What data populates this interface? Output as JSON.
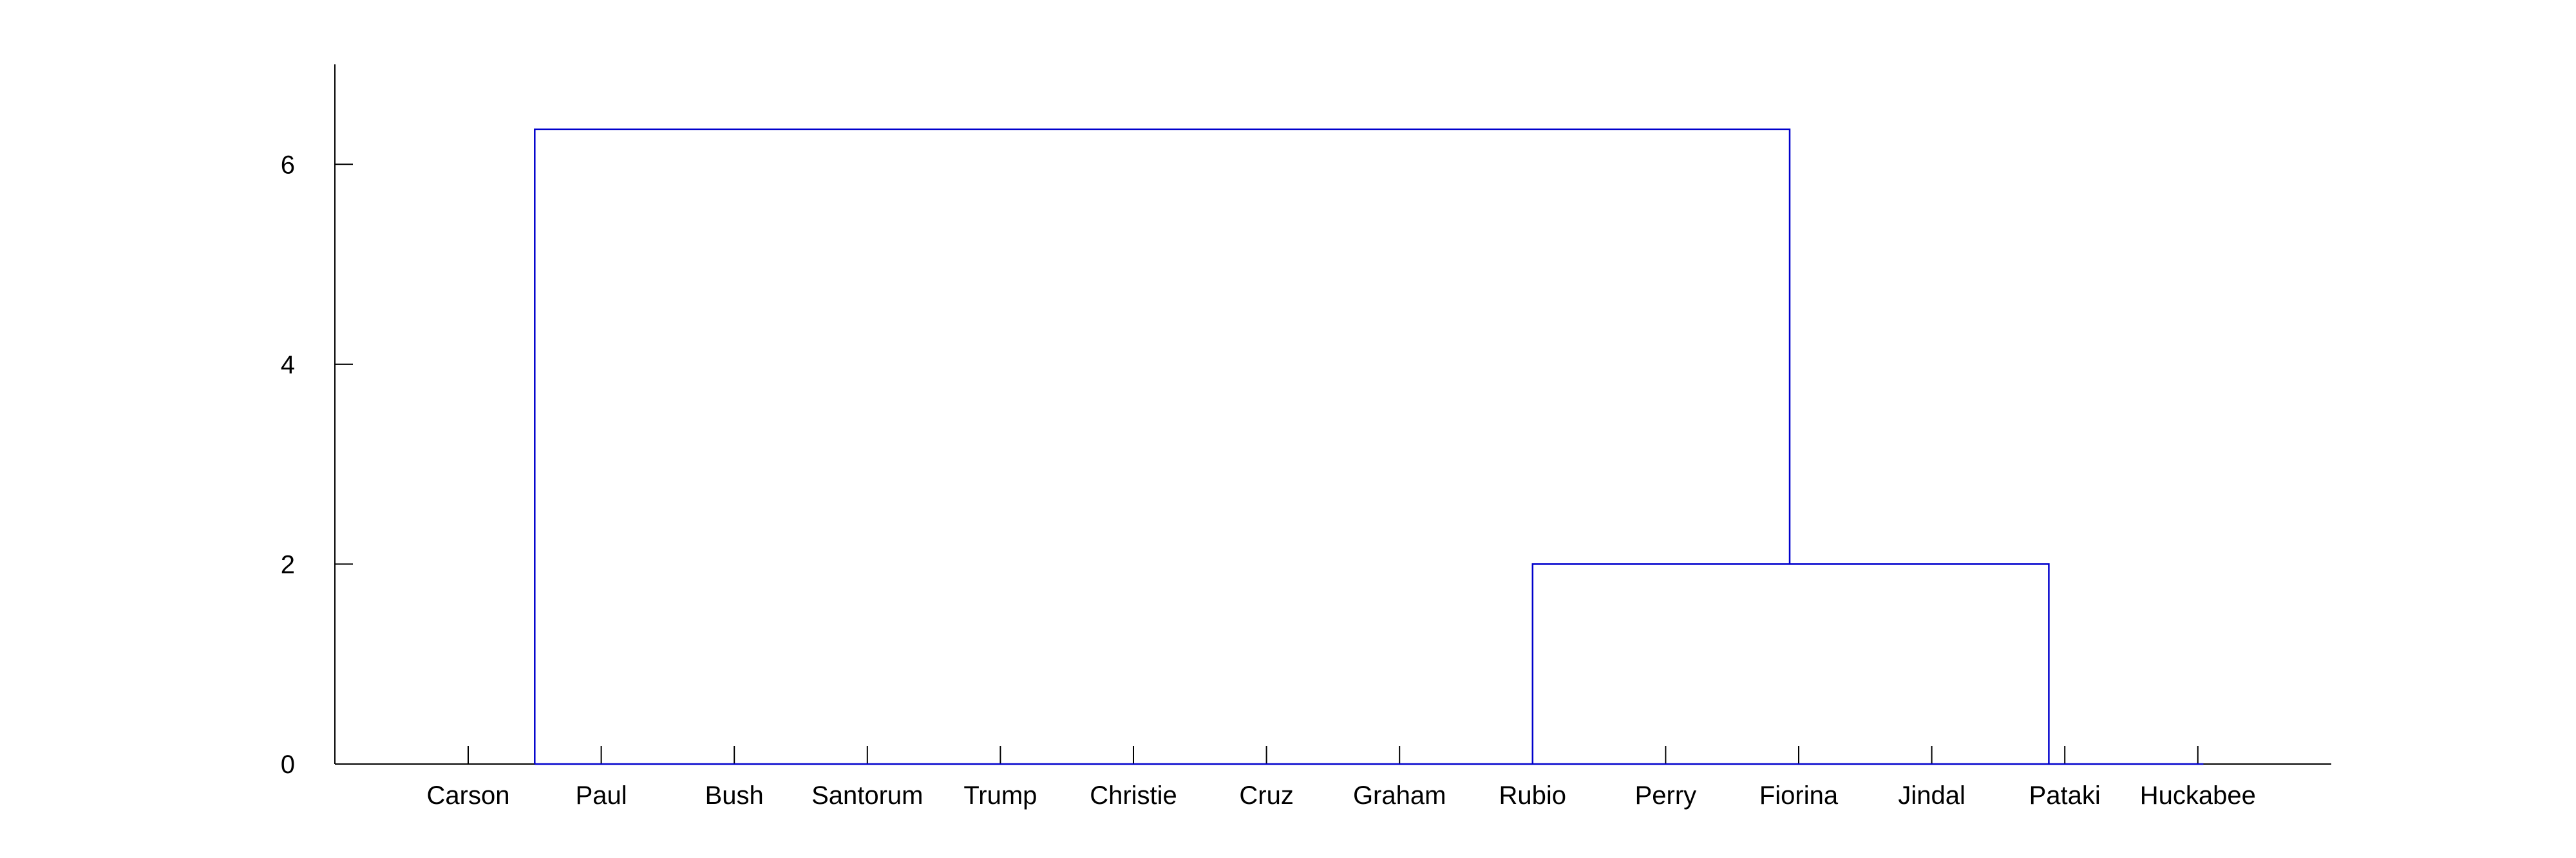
{
  "chart_data": {
    "type": "dendrogram",
    "title": "",
    "xlabel": "",
    "ylabel": "",
    "ylim": [
      0,
      7
    ],
    "grid": false,
    "y_ticks": [
      0,
      2,
      4,
      6
    ],
    "y_tick_labels": [
      "0",
      "2",
      "4",
      "6"
    ],
    "leaves": [
      "Carson",
      "Paul",
      "Bush",
      "Santorum",
      "Trump",
      "Christie",
      "Cruz",
      "Graham",
      "Rubio",
      "Perry",
      "Fiorina",
      "Jindal",
      "Pataki",
      "Huckabee"
    ],
    "merges": [
      {
        "name": "lower-merge",
        "left": "Rubio",
        "right": "Pataki",
        "height": 2.0
      },
      {
        "name": "top-merge",
        "left": "Carson / Paul",
        "right": "lower-merge",
        "height": 6.35
      }
    ],
    "colors": {
      "link": "#0000cc",
      "axis": "#000000"
    }
  }
}
